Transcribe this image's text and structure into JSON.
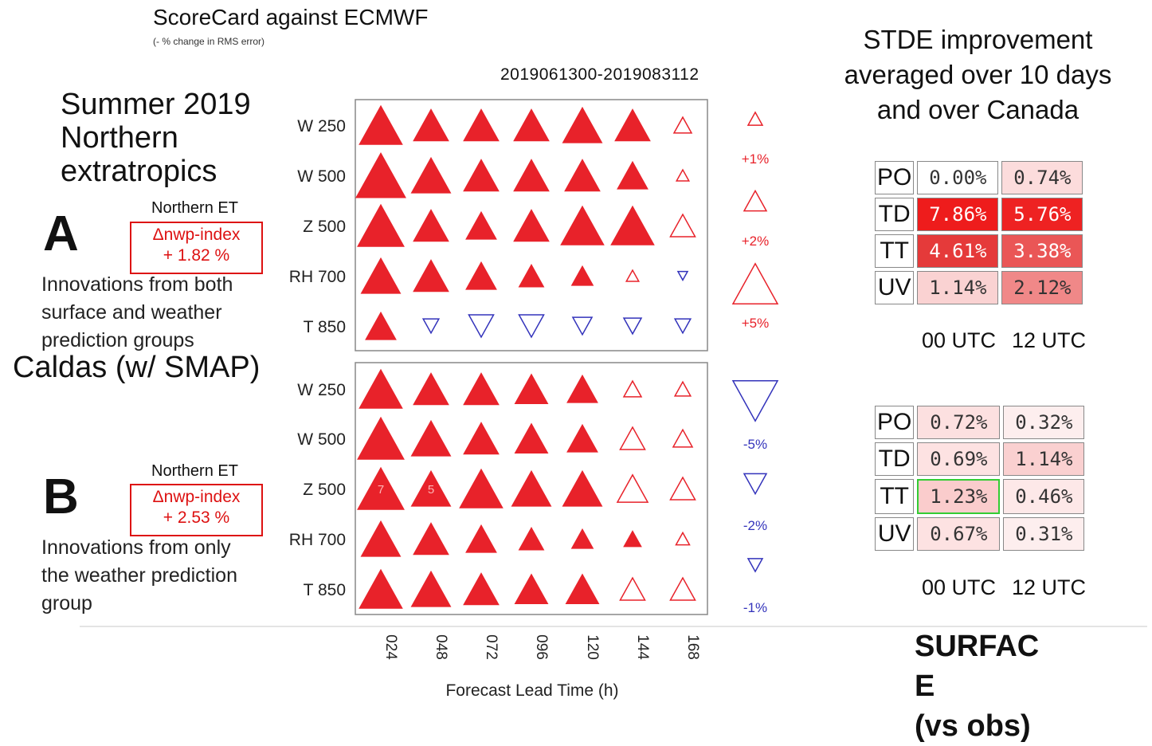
{
  "header": {
    "title": "ScoreCard against ECMWF",
    "subtitle": "(- % change in RMS error)",
    "period": "2019061300-2019083112"
  },
  "left": {
    "season_lines": [
      "Summer 2019",
      "Northern",
      "extratropics"
    ],
    "caldas": "Caldas (w/ SMAP)",
    "panel_a": {
      "letter": "A",
      "et_label": "Northern ET",
      "index_label": "Δnwp-index",
      "index_value": "+ 1.82 %",
      "innovation_lines": [
        "Innovations from both",
        "surface and weather",
        "prediction groups"
      ]
    },
    "panel_b": {
      "letter": "B",
      "et_label": "Northern ET",
      "index_label": "Δnwp-index",
      "index_value": "+ 2.53 %",
      "innovation_lines": [
        "Innovations from only",
        "the weather prediction",
        "group"
      ]
    }
  },
  "legend": {
    "labels": [
      "+1%",
      "+2%",
      "+5%",
      "-5%",
      "-2%",
      "-1%"
    ],
    "positive_color": "#e8222a",
    "negative_color": "#3333bb"
  },
  "chart_data": {
    "type": "scorecard",
    "xlabel": "Forecast Lead Time (h)",
    "x": [
      "024",
      "048",
      "072",
      "096",
      "120",
      "144",
      "168"
    ],
    "rows": [
      "W 250",
      "W 500",
      "Z 500",
      "RH 700",
      "T 850"
    ],
    "note": "value = % improvement (reduction of RMS error); filled = significant, hollow = not significant, negative = degradation",
    "panels": [
      {
        "name": "A",
        "values": [
          [
            6,
            4,
            4,
            4,
            5,
            4,
            1
          ],
          [
            8,
            5,
            4,
            4,
            4,
            3,
            0.5
          ],
          [
            7,
            4,
            3,
            4,
            6,
            6,
            2
          ],
          [
            5,
            4,
            3,
            2,
            1.5,
            0.5,
            -0.3
          ],
          [
            3,
            -0.8,
            -2,
            -2,
            -1.2,
            -1,
            -0.8
          ]
        ],
        "filled": [
          [
            true,
            true,
            true,
            true,
            true,
            true,
            false
          ],
          [
            true,
            true,
            true,
            true,
            true,
            true,
            false
          ],
          [
            true,
            true,
            true,
            true,
            true,
            true,
            false
          ],
          [
            true,
            true,
            true,
            true,
            true,
            false,
            false
          ],
          [
            true,
            false,
            false,
            false,
            false,
            false,
            false
          ]
        ]
      },
      {
        "name": "B",
        "values": [
          [
            6,
            4,
            4,
            3.5,
            3,
            1,
            0.8
          ],
          [
            7,
            5,
            4,
            3.5,
            3,
            2,
            1.2
          ],
          [
            7,
            5,
            6,
            5,
            5,
            3,
            2
          ],
          [
            5,
            4,
            3,
            2,
            1.5,
            1,
            0.6
          ],
          [
            6,
            5,
            4,
            3.5,
            3.5,
            2,
            2
          ]
        ],
        "filled": [
          [
            true,
            true,
            true,
            true,
            true,
            false,
            false
          ],
          [
            true,
            true,
            true,
            true,
            true,
            false,
            false
          ],
          [
            true,
            true,
            true,
            true,
            true,
            false,
            false
          ],
          [
            true,
            true,
            true,
            true,
            true,
            true,
            false
          ],
          [
            true,
            true,
            true,
            true,
            true,
            false,
            false
          ]
        ],
        "annotations": [
          {
            "row": 2,
            "col": 0,
            "text": "7"
          },
          {
            "row": 2,
            "col": 1,
            "text": "5"
          }
        ]
      }
    ]
  },
  "stde": {
    "title_lines": [
      "STDE improvement",
      "averaged over 10 days",
      "and over Canada"
    ],
    "columns": [
      "00 UTC",
      "12 UTC"
    ],
    "table_a": [
      {
        "label": "PO",
        "cells": [
          {
            "text": "0.00%",
            "bg": "#ffffff"
          },
          {
            "text": "0.74%",
            "bg": "#fcdcdc"
          }
        ]
      },
      {
        "label": "TD",
        "cells": [
          {
            "text": "7.86%",
            "bg": "#ee1c1c"
          },
          {
            "text": "5.76%",
            "bg": "#ee2222"
          }
        ]
      },
      {
        "label": "TT",
        "cells": [
          {
            "text": "4.61%",
            "bg": "#e53a3a"
          },
          {
            "text": "3.38%",
            "bg": "#ea5656"
          }
        ]
      },
      {
        "label": "UV",
        "cells": [
          {
            "text": "1.14%",
            "bg": "#fad2d2"
          },
          {
            "text": "2.12%",
            "bg": "#f08888"
          }
        ]
      }
    ],
    "table_b": [
      {
        "label": "PO",
        "cells": [
          {
            "text": "0.72%",
            "bg": "#fce0e0"
          },
          {
            "text": "0.32%",
            "bg": "#fdeeee"
          }
        ]
      },
      {
        "label": "TD",
        "cells": [
          {
            "text": "0.69%",
            "bg": "#fde2e2"
          },
          {
            "text": "1.14%",
            "bg": "#fad0d0"
          }
        ]
      },
      {
        "label": "TT",
        "cells": [
          {
            "text": "1.23%",
            "bg": "#facccc",
            "border": "#33cc33"
          },
          {
            "text": "0.46%",
            "bg": "#fde8e8"
          }
        ]
      },
      {
        "label": "UV",
        "cells": [
          {
            "text": "0.67%",
            "bg": "#fde2e2"
          },
          {
            "text": "0.31%",
            "bg": "#fdeeee"
          }
        ]
      }
    ]
  },
  "surface_label_lines": [
    "SURFAC",
    "E",
    "(vs obs)"
  ]
}
